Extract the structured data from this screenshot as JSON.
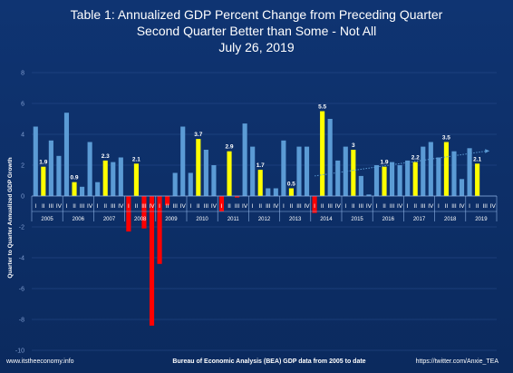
{
  "title_lines": [
    "Table 1: Annualized GDP Percent Change from Preceding Quarter",
    "Second Quarter Better than Some - Not All",
    "July 26, 2019"
  ],
  "footer": {
    "left": "www.itstheeconomy.info",
    "center": "Bureau of Economic Analysis (BEA) GDP data from 2005 to date",
    "right": "https://twitter.com/Anxie_TEA"
  },
  "colors": {
    "background": "#0b2a5e",
    "positive": "#5b9bd5",
    "second_quarter": "#ffff00",
    "negative": "#ff0000",
    "gridline": "#2a4f8f",
    "tick_text": "#7f9ccf",
    "text": "#ffffff"
  },
  "chart_data": {
    "type": "bar",
    "title": "Table 1: Annualized GDP Percent Change from Preceding Quarter",
    "subtitle": "Second Quarter Better than Some - Not All",
    "ylabel": "Quarter to Quarter Annualized GDP Growth",
    "xlabel": "Bureau of Economic Analysis (BEA) GDP data from 2005 to date",
    "ylim": [
      -10,
      8
    ],
    "yticks": [
      8,
      6,
      4,
      2,
      0,
      -2,
      -4,
      -6,
      -8,
      -10
    ],
    "grid": true,
    "quarter_labels": [
      "I",
      "II",
      "III",
      "IV"
    ],
    "years": [
      "2005",
      "2006",
      "2007",
      "2008",
      "2009",
      "2010",
      "2011",
      "2012",
      "2013",
      "2014",
      "2015",
      "2016",
      "2017",
      "2018",
      "2019"
    ],
    "values": [
      4.5,
      1.9,
      3.6,
      2.6,
      5.4,
      0.9,
      0.6,
      3.5,
      0.9,
      2.3,
      2.2,
      2.5,
      -2.3,
      2.1,
      -2.1,
      -8.4,
      -4.4,
      -0.6,
      1.5,
      4.5,
      1.5,
      3.7,
      3.0,
      2.0,
      -1.0,
      2.9,
      -0.1,
      4.7,
      3.2,
      1.7,
      0.5,
      0.5,
      3.6,
      0.5,
      3.2,
      3.2,
      -1.1,
      5.5,
      5.0,
      2.3,
      3.2,
      3.0,
      1.3,
      0.1,
      2.0,
      1.9,
      2.2,
      2.0,
      2.3,
      2.2,
      3.2,
      3.5,
      2.5,
      3.5,
      2.9,
      1.1,
      3.1,
      2.1
    ],
    "data_labels": {
      "1": "1.9",
      "5": "0.9",
      "9": "2.3",
      "13": "2.1",
      "21": "3.7",
      "25": "2.9",
      "29": "1.7",
      "33": "0.5",
      "37": "5.5",
      "41": "3",
      "45": "1.9",
      "49": "2.2",
      "53": "3.5",
      "57": "2.1"
    },
    "trendline": {
      "style": "dotted",
      "from_index": 36,
      "to_index": 58,
      "y_start": 1.3,
      "y_end": 2.9
    }
  }
}
